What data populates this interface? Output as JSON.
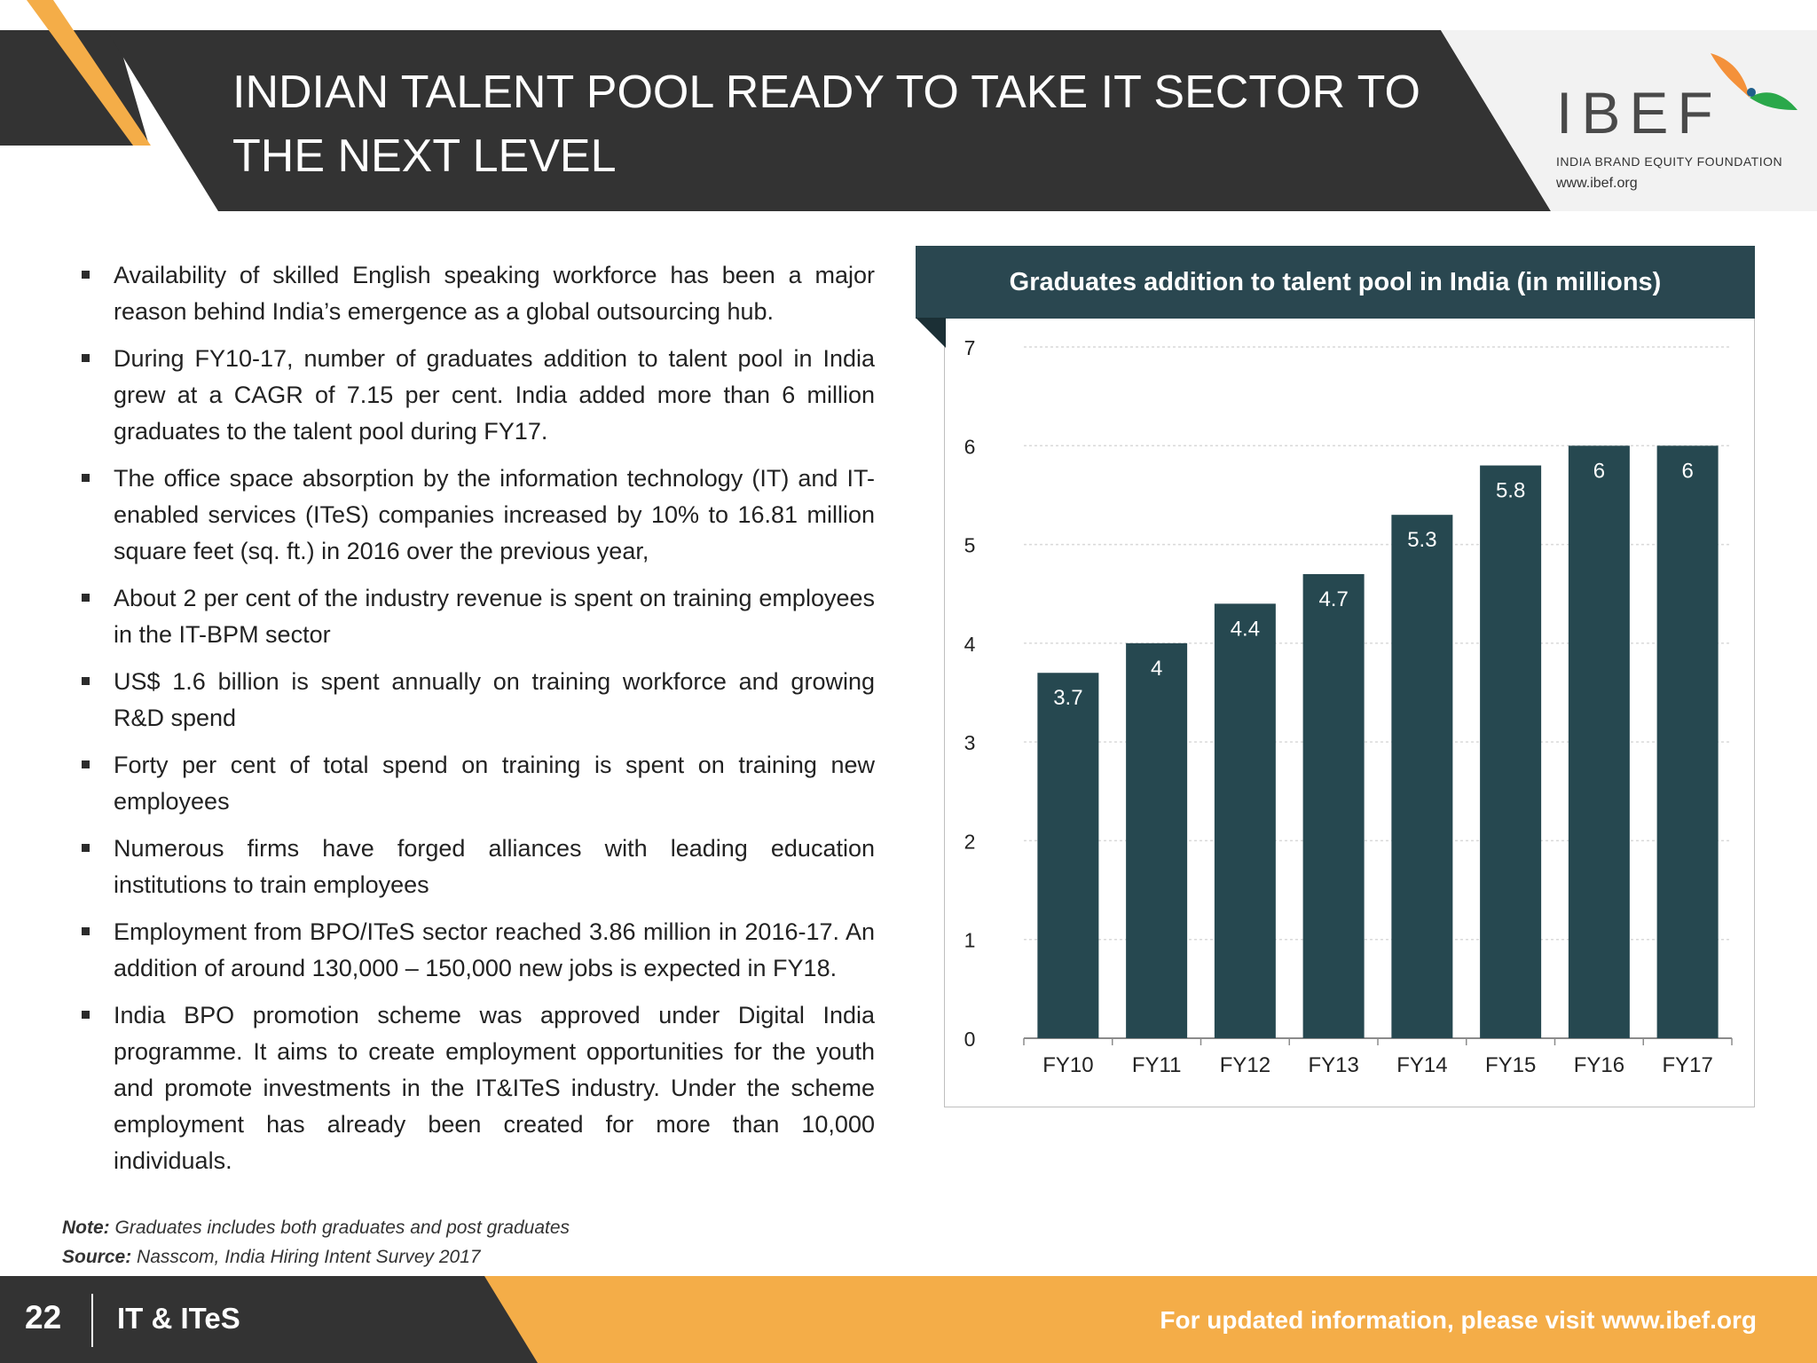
{
  "header": {
    "title_line1": "INDIAN TALENT POOL READY TO TAKE IT SECTOR TO",
    "title_line2": "THE NEXT LEVEL"
  },
  "logo": {
    "wordmark": "IBEF",
    "subtitle": "INDIA BRAND EQUITY FOUNDATION",
    "url": "www.ibef.org"
  },
  "bullets": [
    "Availability of skilled English speaking workforce has been a major reason behind India’s emergence as a global outsourcing hub.",
    "During FY10-17, number of graduates addition to talent pool in India grew at a CAGR of 7.15 per cent. India added more than 6 million graduates to the talent pool during FY17.",
    "The office space absorption by the information technology (IT) and IT-enabled services (ITeS) companies increased by 10% to 16.81 million square feet (sq. ft.) in 2016 over the previous year,",
    "About 2 per cent of the industry revenue is spent on training employees in the IT-BPM sector",
    "US$ 1.6 billion is spent annually on training workforce and growing R&D spend",
    "Forty per cent of total spend on training is spent on training new employees",
    "Numerous firms have forged alliances with leading education institutions to train employees",
    "Employment from BPO/ITeS sector reached 3.86 million in 2016-17. An addition of around 130,000 – 150,000 new  jobs is expected  in FY18.",
    "India BPO promotion scheme was approved under Digital India programme. It aims to create employment opportunities for the youth and promote investments in the IT&ITeS industry. Under the scheme employment has already been created for more than 10,000 individuals."
  ],
  "notes": {
    "note_label": "Note:",
    "note_text": "Graduates includes both graduates and post graduates",
    "source_label": "Source:",
    "source_text": "Nasscom, India Hiring Intent Survey 2017"
  },
  "footer": {
    "page_number": "22",
    "section": "IT & ITeS",
    "link_text": "For updated information, please visit www.ibef.org"
  },
  "colors": {
    "bar": "#264850",
    "header_dark": "#333333",
    "accent_orange": "#f4ad48",
    "chart_header": "#2a4750",
    "grid": "#d9d9d9"
  },
  "chart_data": {
    "type": "bar",
    "title": "Graduates addition to talent pool in India (in millions)",
    "categories": [
      "FY10",
      "FY11",
      "FY12",
      "FY13",
      "FY14",
      "FY15",
      "FY16",
      "FY17"
    ],
    "values": [
      3.7,
      4,
      4.4,
      4.7,
      5.3,
      5.8,
      6,
      6
    ],
    "value_labels": [
      "3.7",
      "4",
      "4.4",
      "4.7",
      "5.3",
      "5.8",
      "6",
      "6"
    ],
    "yticks": [
      "0",
      "1",
      "2",
      "3",
      "4",
      "5",
      "6",
      "7"
    ],
    "ylim": [
      0,
      7
    ],
    "grid": true,
    "legend": "none"
  }
}
